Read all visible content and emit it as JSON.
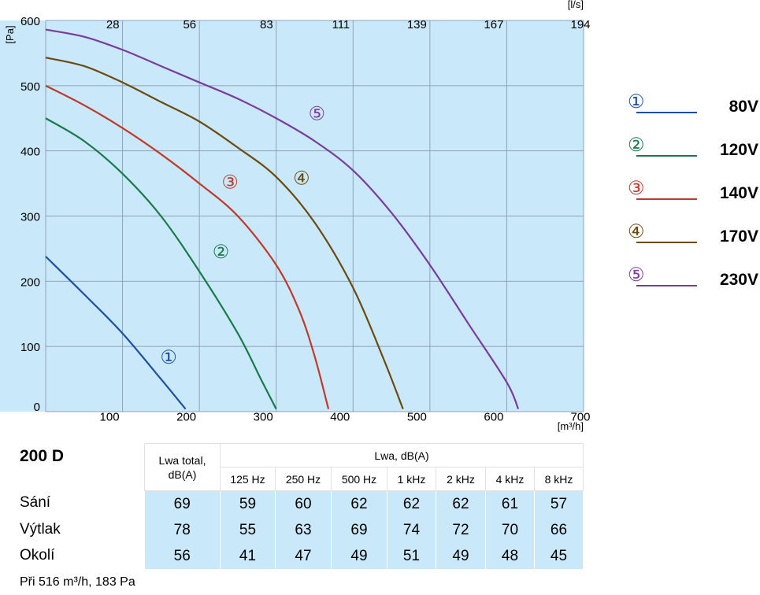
{
  "chart_data": {
    "type": "line",
    "x_unit": "[m³/h]",
    "y_unit": "[Pa]",
    "top_unit": "[l/s]",
    "xlim": [
      0,
      700
    ],
    "ylim": [
      0,
      600
    ],
    "x_ticks": [
      "100",
      "200",
      "300",
      "400",
      "500",
      "600",
      "700"
    ],
    "y_ticks": [
      "0",
      "100",
      "200",
      "300",
      "400",
      "500",
      "600"
    ],
    "top_ticks": [
      "28",
      "56",
      "83",
      "111",
      "139",
      "167",
      "194"
    ],
    "grid": true,
    "series": [
      {
        "name": "80V",
        "marker": "①",
        "color": "#1f4fa0",
        "label_at": [
          160,
          83
        ],
        "points": [
          [
            0,
            238
          ],
          [
            50,
            180
          ],
          [
            100,
            120
          ],
          [
            150,
            50
          ],
          [
            182,
            4
          ]
        ]
      },
      {
        "name": "120V",
        "marker": "②",
        "color": "#1a7a4c",
        "label_at": [
          228,
          245
        ],
        "points": [
          [
            0,
            450
          ],
          [
            50,
            415
          ],
          [
            100,
            365
          ],
          [
            150,
            300
          ],
          [
            200,
            215
          ],
          [
            250,
            120
          ],
          [
            280,
            50
          ],
          [
            300,
            4
          ]
        ]
      },
      {
        "name": "140V",
        "marker": "③",
        "color": "#c0392b",
        "label_at": [
          240,
          352
        ],
        "points": [
          [
            0,
            500
          ],
          [
            50,
            470
          ],
          [
            100,
            435
          ],
          [
            150,
            395
          ],
          [
            200,
            350
          ],
          [
            250,
            300
          ],
          [
            300,
            225
          ],
          [
            330,
            155
          ],
          [
            350,
            85
          ],
          [
            368,
            4
          ]
        ]
      },
      {
        "name": "170V",
        "marker": "④",
        "color": "#6b4a10",
        "label_at": [
          333,
          358
        ],
        "points": [
          [
            0,
            543
          ],
          [
            50,
            530
          ],
          [
            100,
            505
          ],
          [
            150,
            475
          ],
          [
            200,
            445
          ],
          [
            250,
            405
          ],
          [
            300,
            360
          ],
          [
            350,
            290
          ],
          [
            400,
            190
          ],
          [
            440,
            80
          ],
          [
            465,
            4
          ]
        ]
      },
      {
        "name": "230V",
        "marker": "⑤",
        "color": "#7b3b9e",
        "label_at": [
          353,
          457
        ],
        "points": [
          [
            0,
            586
          ],
          [
            50,
            575
          ],
          [
            100,
            555
          ],
          [
            150,
            530
          ],
          [
            200,
            505
          ],
          [
            250,
            480
          ],
          [
            300,
            450
          ],
          [
            350,
            415
          ],
          [
            400,
            370
          ],
          [
            450,
            305
          ],
          [
            500,
            225
          ],
          [
            550,
            135
          ],
          [
            600,
            45
          ],
          [
            615,
            4
          ]
        ]
      }
    ]
  },
  "table": {
    "model": "200 D",
    "header_total": [
      "Lwa total,",
      "dB(A)"
    ],
    "header_group": "Lwa, dB(A)",
    "bands": [
      "125 Hz",
      "250 Hz",
      "500 Hz",
      "1 kHz",
      "2 kHz",
      "4 kHz",
      "8 kHz"
    ],
    "rows": [
      {
        "label": "Sání",
        "total": "69",
        "values": [
          "59",
          "60",
          "62",
          "62",
          "62",
          "61",
          "57"
        ]
      },
      {
        "label": "Výtlak",
        "total": "78",
        "values": [
          "55",
          "63",
          "69",
          "74",
          "72",
          "70",
          "66"
        ]
      },
      {
        "label": "Okolí",
        "total": "56",
        "values": [
          "41",
          "47",
          "49",
          "51",
          "49",
          "48",
          "45"
        ]
      }
    ],
    "footnote": "Při 516 m³/h, 183 Pa"
  }
}
